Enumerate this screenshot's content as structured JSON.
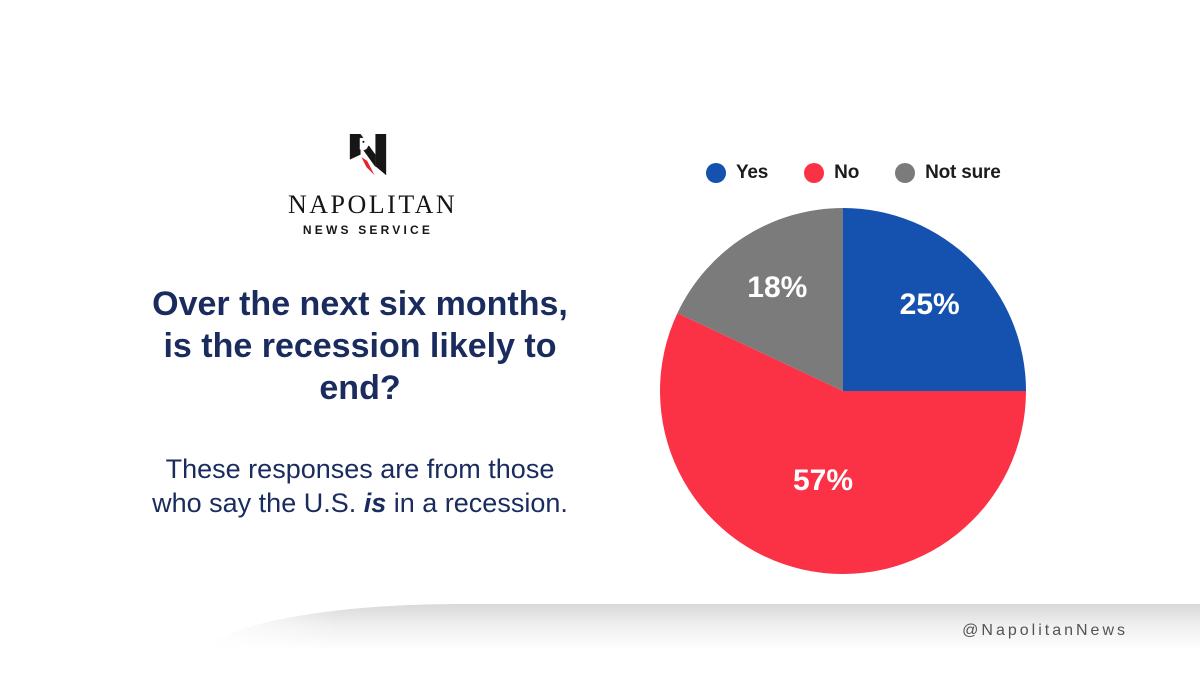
{
  "brand": {
    "logo_icon": "napolitan-eagle-n-monogram",
    "name": "NAPOLITAN",
    "tagline": "NEWS SERVICE"
  },
  "headline": {
    "lines": [
      "Over the next six months,",
      "is the recession likely to",
      "end?"
    ]
  },
  "subtitle": {
    "line1": "These responses are from those",
    "line2_prefix": "who say the U.S. ",
    "line2_emphasis": "is",
    "line2_suffix": " in a recession."
  },
  "footer": {
    "handle": "@NapolitanNews"
  },
  "colors": {
    "headline_navy": "#1A2B5E",
    "logo_black": "#161616",
    "logo_red": "#E4252C",
    "legend_text": "#1C1C1C",
    "handle_gray": "#545454",
    "card_bg": "#FFFFFF"
  },
  "chart_data": {
    "type": "pie",
    "title": "",
    "categories": [
      "Yes",
      "No",
      "Not sure"
    ],
    "values": [
      25,
      57,
      18
    ],
    "labels": [
      "25%",
      "57%",
      "18%"
    ],
    "colors": [
      "#1551AE",
      "#FB3246",
      "#7B7B7B"
    ],
    "legend_position": "top-right",
    "start_angle_deg": 0,
    "direction": "clockwise",
    "label_radius_fractions": [
      0.67,
      0.5,
      0.67
    ],
    "label_text_color": "#FFFFFF"
  }
}
